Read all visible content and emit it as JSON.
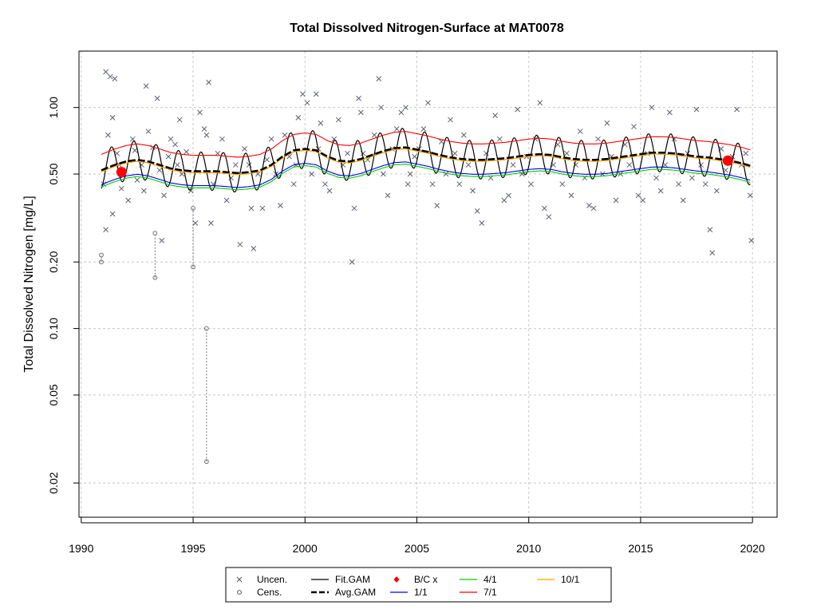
{
  "chart_data": {
    "type": "scatter",
    "title": "Total Dissolved Nitrogen-Surface at MAT0078",
    "xlabel": "",
    "ylabel": "Total Dissolved Nitrogen [mg/L]",
    "x_ticks": [
      "1990",
      "1995",
      "2000",
      "2005",
      "2010",
      "2015",
      "2020"
    ],
    "y_ticks": [
      "0.02",
      "0.05",
      "0.10",
      "0.20",
      "0.50",
      "1.00"
    ],
    "y_scale": "log",
    "xlim": [
      1989.9,
      2021.1
    ],
    "ylim": [
      0.014,
      1.8
    ],
    "grid": true,
    "legend": {
      "placement": "bottom-center",
      "items": [
        {
          "label": "Uncen.",
          "symbol": "x",
          "color": "#555555"
        },
        {
          "label": "Cens.",
          "symbol": "circle",
          "color": "#555555"
        },
        {
          "label": "Fit.GAM",
          "symbol": "line",
          "color": "#000000"
        },
        {
          "label": "Avg.GAM",
          "symbol": "dashed-thick",
          "color": "#000000"
        },
        {
          "label": "B/C x",
          "symbol": "diamond",
          "color": "#ff0000"
        },
        {
          "label": "1/1",
          "symbol": "line",
          "color": "#0000ff"
        },
        {
          "label": "4/1",
          "symbol": "line",
          "color": "#00cc00"
        },
        {
          "label": "7/1",
          "symbol": "line",
          "color": "#ff0000"
        },
        {
          "label": "10/1",
          "symbol": "line",
          "color": "#ffa500"
        }
      ]
    },
    "colors": {
      "uncen": "#5a6070",
      "cens": "#707070",
      "fit_gam": "#000000",
      "avg_gam": "#000000",
      "bc": "#ff0000",
      "d1_1": "#0000ff",
      "d4_1": "#00cc00",
      "d7_1": "#ff0000",
      "d10_1": "#ffa500"
    },
    "bc_points": [
      {
        "x": 1991.8,
        "y": 0.51
      },
      {
        "x": 2018.9,
        "y": 0.575
      }
    ],
    "censored_intervals": [
      {
        "x": 1990.9,
        "low": 0.2,
        "high": 0.215
      },
      {
        "x": 1993.3,
        "low": 0.17,
        "high": 0.27
      },
      {
        "x": 1995.0,
        "low": 0.19,
        "high": 0.35
      },
      {
        "x": 1995.6,
        "low": 0.025,
        "high": 0.1
      }
    ],
    "avg_gam": {
      "x": [
        1990.9,
        1991.5,
        1992.0,
        1992.5,
        1993.0,
        1993.5,
        1994.0,
        1994.5,
        1995.0,
        1995.5,
        1996.0,
        1996.5,
        1997.0,
        1997.5,
        1998.0,
        1998.5,
        1999.0,
        1999.5,
        2000.0,
        2000.5,
        2001.0,
        2001.5,
        2002.0,
        2002.5,
        2003.0,
        2003.5,
        2004.0,
        2004.5,
        2005.0,
        2005.5,
        2006.0,
        2006.5,
        2007.0,
        2007.5,
        2008.0,
        2008.5,
        2009.0,
        2009.5,
        2010.0,
        2010.5,
        2011.0,
        2011.5,
        2012.0,
        2012.5,
        2013.0,
        2013.5,
        2014.0,
        2014.5,
        2015.0,
        2015.5,
        2016.0,
        2016.5,
        2017.0,
        2017.5,
        2018.0,
        2018.5,
        2019.0,
        2019.5,
        2019.9
      ],
      "y": [
        0.52,
        0.55,
        0.57,
        0.58,
        0.57,
        0.55,
        0.53,
        0.52,
        0.515,
        0.515,
        0.515,
        0.51,
        0.505,
        0.51,
        0.52,
        0.55,
        0.6,
        0.64,
        0.65,
        0.64,
        0.6,
        0.575,
        0.57,
        0.585,
        0.61,
        0.635,
        0.655,
        0.66,
        0.645,
        0.63,
        0.61,
        0.595,
        0.585,
        0.58,
        0.58,
        0.585,
        0.59,
        0.6,
        0.61,
        0.615,
        0.61,
        0.595,
        0.585,
        0.58,
        0.58,
        0.585,
        0.595,
        0.605,
        0.615,
        0.625,
        0.625,
        0.62,
        0.61,
        0.6,
        0.595,
        0.585,
        0.575,
        0.56,
        0.545
      ]
    },
    "series_ratio_to_avg": {
      "1/1": 0.86,
      "4/1": 0.84,
      "7/1": 1.18,
      "10/1": 0.985
    },
    "fit_gam": {
      "seasonal_amplitude": 0.2,
      "period_years": 1.0
    },
    "uncensored_points": [
      {
        "x": 1991.1,
        "y": 1.45
      },
      {
        "x": 1991.3,
        "y": 1.38
      },
      {
        "x": 1991.5,
        "y": 1.35
      },
      {
        "x": 1991.2,
        "y": 0.75
      },
      {
        "x": 1991.4,
        "y": 0.9
      },
      {
        "x": 1991.6,
        "y": 0.62
      },
      {
        "x": 1991.0,
        "y": 0.45
      },
      {
        "x": 1991.1,
        "y": 0.28
      },
      {
        "x": 1991.7,
        "y": 0.55
      },
      {
        "x": 1991.4,
        "y": 0.33
      },
      {
        "x": 1991.8,
        "y": 0.43
      },
      {
        "x": 1992.1,
        "y": 0.38
      },
      {
        "x": 1992.3,
        "y": 0.72
      },
      {
        "x": 1992.5,
        "y": 0.47
      },
      {
        "x": 1992.7,
        "y": 0.55
      },
      {
        "x": 1992.9,
        "y": 1.25
      },
      {
        "x": 1992.4,
        "y": 0.64
      },
      {
        "x": 1992.8,
        "y": 0.42
      },
      {
        "x": 1993.0,
        "y": 0.78
      },
      {
        "x": 1993.2,
        "y": 0.66
      },
      {
        "x": 1993.4,
        "y": 1.1
      },
      {
        "x": 1993.5,
        "y": 0.52
      },
      {
        "x": 1993.7,
        "y": 0.4
      },
      {
        "x": 1993.9,
        "y": 0.6
      },
      {
        "x": 1993.6,
        "y": 0.25
      },
      {
        "x": 1994.0,
        "y": 0.72
      },
      {
        "x": 1994.2,
        "y": 0.68
      },
      {
        "x": 1994.4,
        "y": 0.88
      },
      {
        "x": 1994.5,
        "y": 0.5
      },
      {
        "x": 1994.7,
        "y": 0.63
      },
      {
        "x": 1994.9,
        "y": 0.42
      },
      {
        "x": 1994.3,
        "y": 0.55
      },
      {
        "x": 1995.1,
        "y": 0.3
      },
      {
        "x": 1995.3,
        "y": 0.95
      },
      {
        "x": 1995.5,
        "y": 0.8
      },
      {
        "x": 1995.7,
        "y": 1.3
      },
      {
        "x": 1995.6,
        "y": 0.75
      },
      {
        "x": 1995.9,
        "y": 0.45
      },
      {
        "x": 1995.8,
        "y": 0.3
      },
      {
        "x": 1996.1,
        "y": 0.62
      },
      {
        "x": 1996.3,
        "y": 0.72
      },
      {
        "x": 1996.5,
        "y": 0.38
      },
      {
        "x": 1996.7,
        "y": 0.48
      },
      {
        "x": 1996.9,
        "y": 0.55
      },
      {
        "x": 1997.1,
        "y": 0.24
      },
      {
        "x": 1997.3,
        "y": 0.65
      },
      {
        "x": 1997.5,
        "y": 0.55
      },
      {
        "x": 1997.7,
        "y": 0.23
      },
      {
        "x": 1997.9,
        "y": 0.5
      },
      {
        "x": 1997.6,
        "y": 0.35
      },
      {
        "x": 1998.1,
        "y": 0.35
      },
      {
        "x": 1998.3,
        "y": 0.58
      },
      {
        "x": 1998.5,
        "y": 0.72
      },
      {
        "x": 1998.7,
        "y": 0.5
      },
      {
        "x": 1998.9,
        "y": 0.36
      },
      {
        "x": 1999.1,
        "y": 0.75
      },
      {
        "x": 1999.3,
        "y": 0.6
      },
      {
        "x": 1999.5,
        "y": 0.45
      },
      {
        "x": 1999.7,
        "y": 0.9
      },
      {
        "x": 1999.9,
        "y": 1.15
      },
      {
        "x": 1999.6,
        "y": 0.55
      },
      {
        "x": 2000.1,
        "y": 1.05
      },
      {
        "x": 2000.3,
        "y": 0.5
      },
      {
        "x": 2000.5,
        "y": 1.15
      },
      {
        "x": 2000.7,
        "y": 0.85
      },
      {
        "x": 2000.9,
        "y": 0.45
      },
      {
        "x": 2000.6,
        "y": 0.65
      },
      {
        "x": 2001.1,
        "y": 0.42
      },
      {
        "x": 2001.3,
        "y": 0.72
      },
      {
        "x": 2001.5,
        "y": 0.88
      },
      {
        "x": 2001.7,
        "y": 0.55
      },
      {
        "x": 2001.9,
        "y": 0.62
      },
      {
        "x": 2002.1,
        "y": 0.2
      },
      {
        "x": 2002.2,
        "y": 0.35
      },
      {
        "x": 2002.4,
        "y": 1.1
      },
      {
        "x": 2002.6,
        "y": 0.62
      },
      {
        "x": 2002.8,
        "y": 0.58
      },
      {
        "x": 2002.5,
        "y": 0.95
      },
      {
        "x": 2003.1,
        "y": 0.75
      },
      {
        "x": 2003.3,
        "y": 1.35
      },
      {
        "x": 2003.5,
        "y": 0.5
      },
      {
        "x": 2003.7,
        "y": 0.4
      },
      {
        "x": 2003.9,
        "y": 0.65
      },
      {
        "x": 2003.4,
        "y": 1.0
      },
      {
        "x": 2004.1,
        "y": 0.8
      },
      {
        "x": 2004.3,
        "y": 0.95
      },
      {
        "x": 2004.5,
        "y": 1.0
      },
      {
        "x": 2004.7,
        "y": 0.5
      },
      {
        "x": 2004.9,
        "y": 0.6
      },
      {
        "x": 2004.6,
        "y": 0.45
      },
      {
        "x": 2005.1,
        "y": 0.65
      },
      {
        "x": 2005.3,
        "y": 0.8
      },
      {
        "x": 2005.5,
        "y": 1.05
      },
      {
        "x": 2005.7,
        "y": 0.45
      },
      {
        "x": 2005.9,
        "y": 0.36
      },
      {
        "x": 2006.1,
        "y": 0.7
      },
      {
        "x": 2006.3,
        "y": 0.5
      },
      {
        "x": 2006.5,
        "y": 0.88
      },
      {
        "x": 2006.7,
        "y": 0.62
      },
      {
        "x": 2006.9,
        "y": 0.45
      },
      {
        "x": 2007.1,
        "y": 0.75
      },
      {
        "x": 2007.3,
        "y": 0.55
      },
      {
        "x": 2007.5,
        "y": 0.42
      },
      {
        "x": 2007.7,
        "y": 0.34
      },
      {
        "x": 2007.9,
        "y": 0.3
      },
      {
        "x": 2008.1,
        "y": 0.62
      },
      {
        "x": 2008.3,
        "y": 0.48
      },
      {
        "x": 2008.5,
        "y": 0.92
      },
      {
        "x": 2008.7,
        "y": 0.72
      },
      {
        "x": 2008.9,
        "y": 0.38
      },
      {
        "x": 2009.1,
        "y": 0.4
      },
      {
        "x": 2009.3,
        "y": 0.55
      },
      {
        "x": 2009.5,
        "y": 0.98
      },
      {
        "x": 2009.7,
        "y": 0.5
      },
      {
        "x": 2009.9,
        "y": 0.6
      },
      {
        "x": 2010.1,
        "y": 0.45
      },
      {
        "x": 2010.3,
        "y": 0.72
      },
      {
        "x": 2010.5,
        "y": 1.05
      },
      {
        "x": 2010.7,
        "y": 0.35
      },
      {
        "x": 2010.9,
        "y": 0.32
      },
      {
        "x": 2011.1,
        "y": 0.55
      },
      {
        "x": 2011.3,
        "y": 0.68
      },
      {
        "x": 2011.5,
        "y": 0.45
      },
      {
        "x": 2011.7,
        "y": 0.62
      },
      {
        "x": 2011.9,
        "y": 0.4
      },
      {
        "x": 2012.1,
        "y": 0.55
      },
      {
        "x": 2012.3,
        "y": 0.78
      },
      {
        "x": 2012.5,
        "y": 0.48
      },
      {
        "x": 2012.7,
        "y": 0.36
      },
      {
        "x": 2012.9,
        "y": 0.35
      },
      {
        "x": 2013.1,
        "y": 0.72
      },
      {
        "x": 2013.3,
        "y": 0.5
      },
      {
        "x": 2013.5,
        "y": 0.85
      },
      {
        "x": 2013.7,
        "y": 0.6
      },
      {
        "x": 2013.9,
        "y": 0.38
      },
      {
        "x": 2014.1,
        "y": 0.5
      },
      {
        "x": 2014.3,
        "y": 0.68
      },
      {
        "x": 2014.5,
        "y": 0.55
      },
      {
        "x": 2014.7,
        "y": 0.82
      },
      {
        "x": 2014.9,
        "y": 0.4
      },
      {
        "x": 2015.1,
        "y": 0.38
      },
      {
        "x": 2015.3,
        "y": 0.62
      },
      {
        "x": 2015.5,
        "y": 1.0
      },
      {
        "x": 2015.7,
        "y": 0.48
      },
      {
        "x": 2015.9,
        "y": 0.42
      },
      {
        "x": 2016.1,
        "y": 0.55
      },
      {
        "x": 2016.3,
        "y": 0.95
      },
      {
        "x": 2016.5,
        "y": 0.72
      },
      {
        "x": 2016.7,
        "y": 0.45
      },
      {
        "x": 2016.9,
        "y": 0.38
      },
      {
        "x": 2017.1,
        "y": 0.62
      },
      {
        "x": 2017.3,
        "y": 0.48
      },
      {
        "x": 2017.5,
        "y": 0.98
      },
      {
        "x": 2017.7,
        "y": 0.55
      },
      {
        "x": 2017.9,
        "y": 0.45
      },
      {
        "x": 2018.1,
        "y": 0.28
      },
      {
        "x": 2018.2,
        "y": 0.22
      },
      {
        "x": 2018.4,
        "y": 0.42
      },
      {
        "x": 2018.6,
        "y": 0.65
      },
      {
        "x": 2018.8,
        "y": 0.52
      },
      {
        "x": 2019.1,
        "y": 0.6
      },
      {
        "x": 2019.3,
        "y": 0.98
      },
      {
        "x": 2019.5,
        "y": 0.55
      },
      {
        "x": 2019.7,
        "y": 0.62
      },
      {
        "x": 2019.9,
        "y": 0.4
      },
      {
        "x": 2019.95,
        "y": 0.25
      }
    ]
  }
}
